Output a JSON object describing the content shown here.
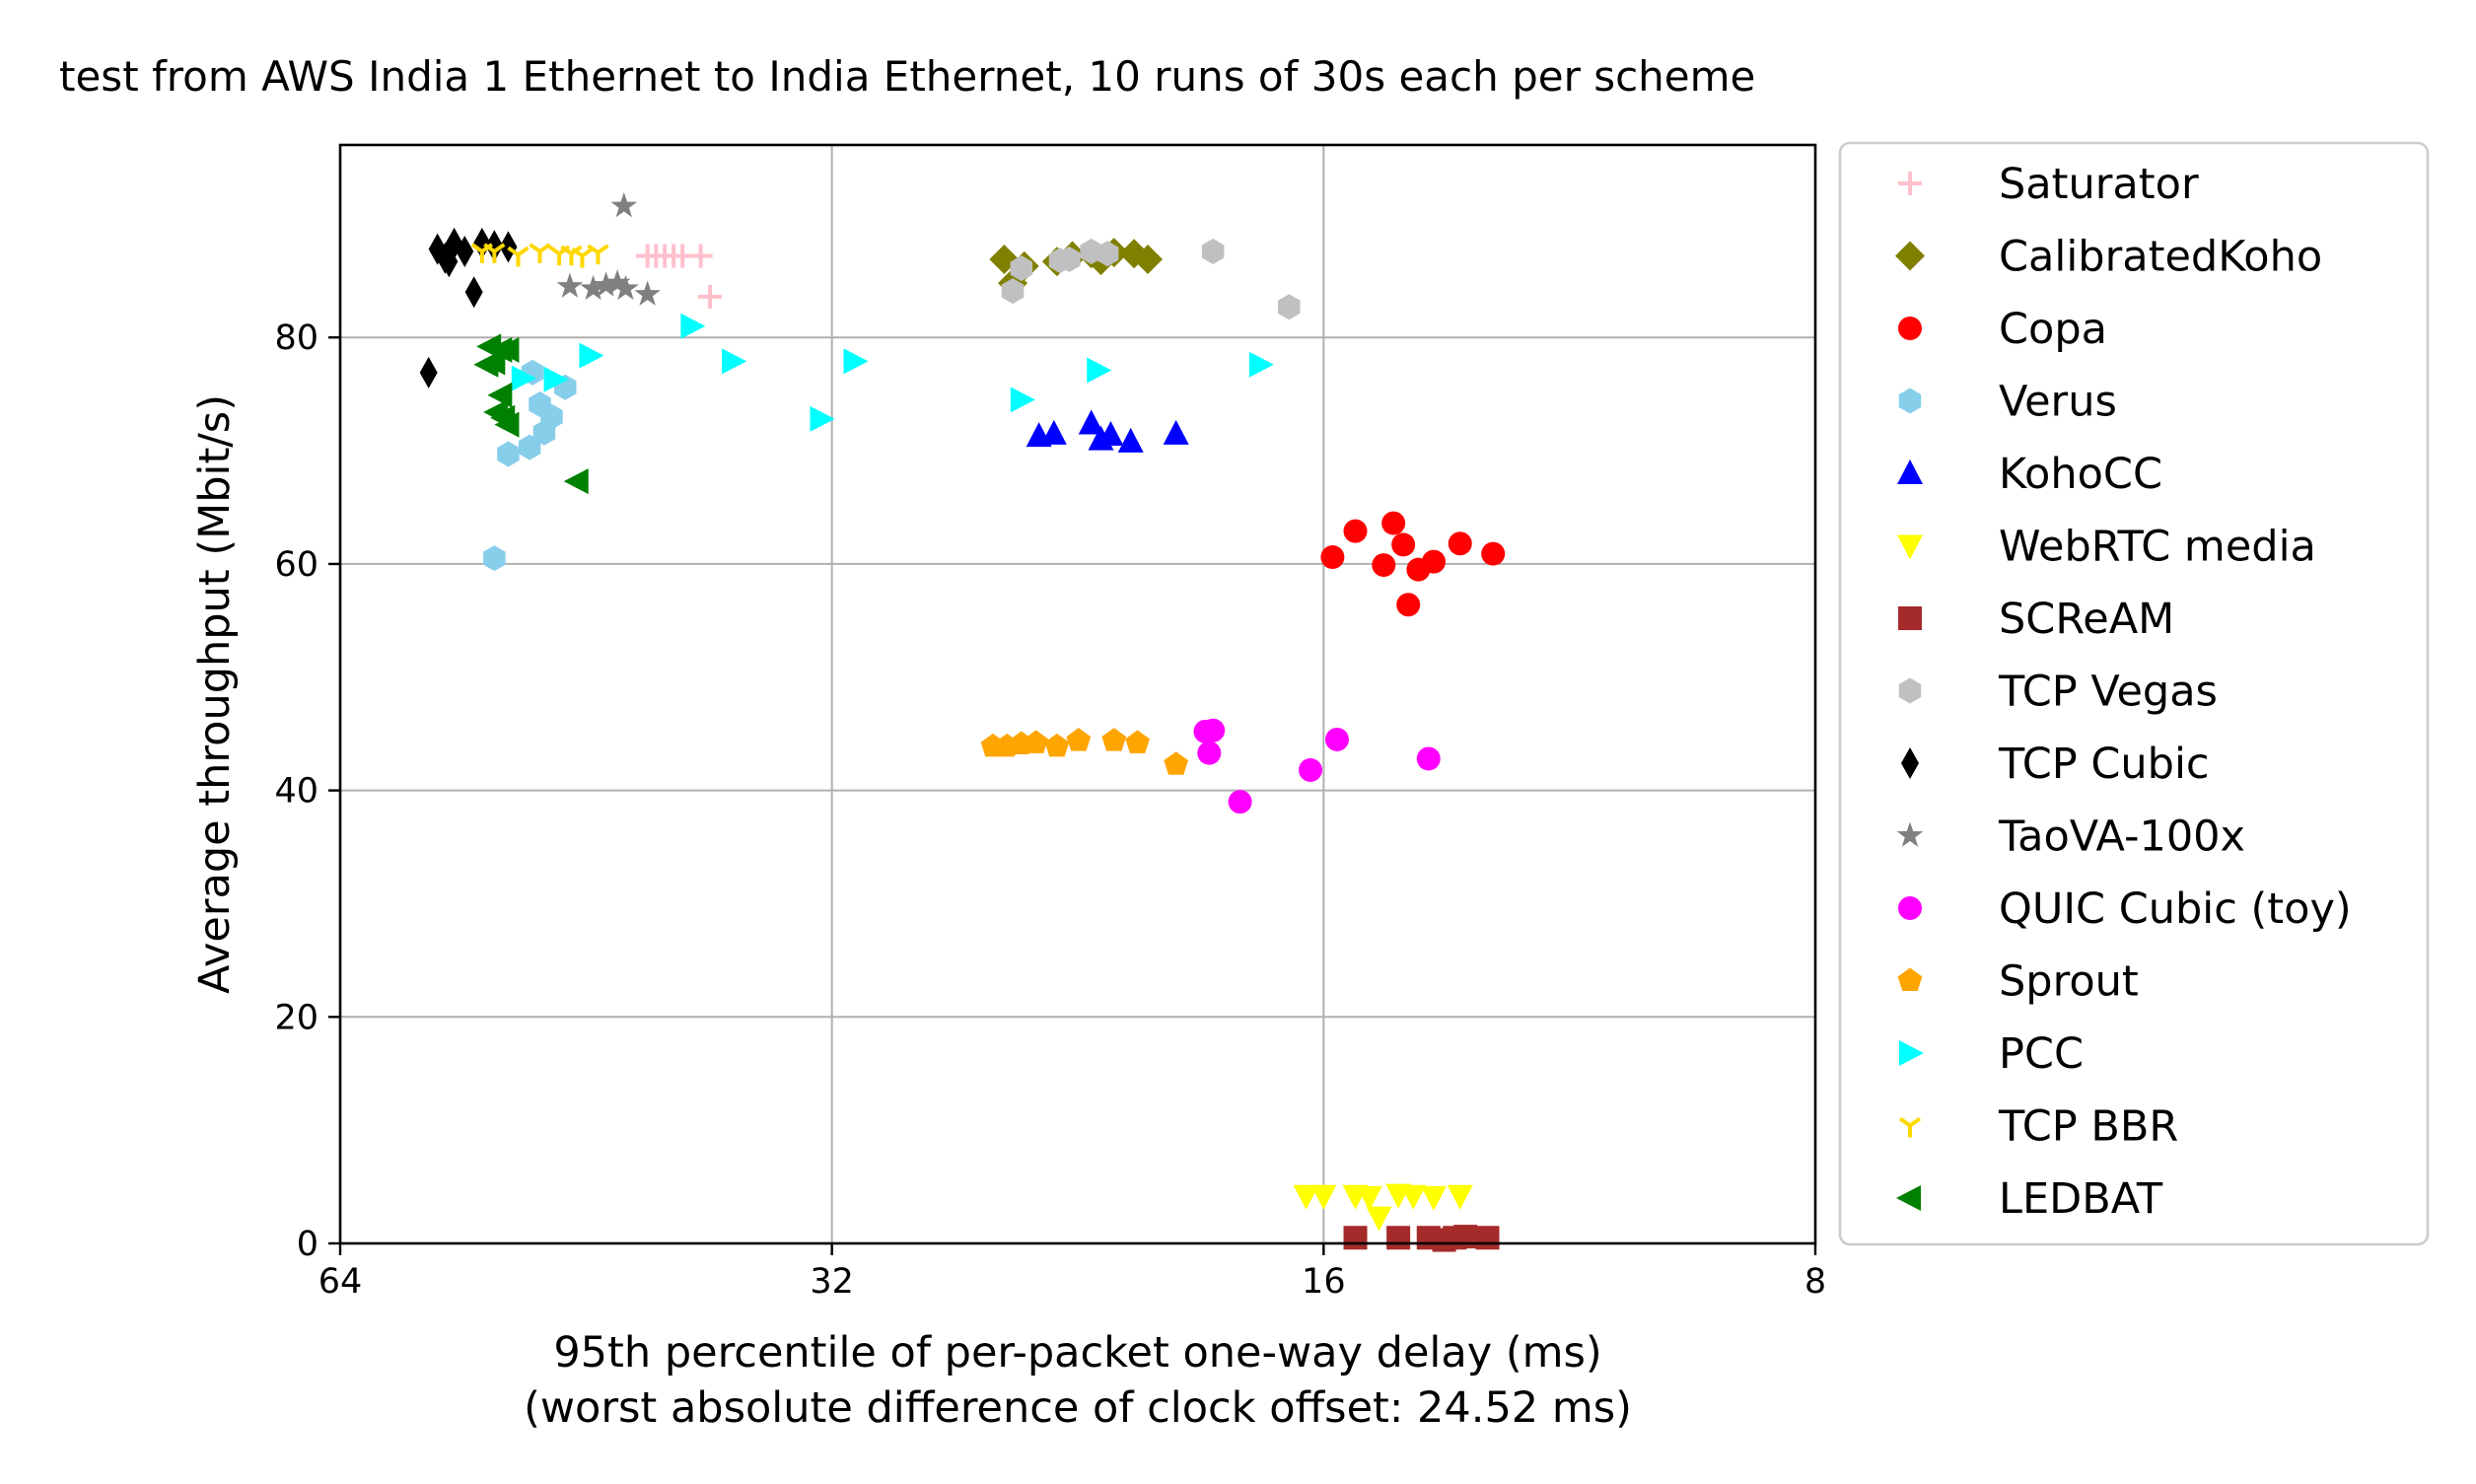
{
  "chart_data": {
    "type": "scatter",
    "title": "test from AWS India 1 Ethernet to India Ethernet, 10 runs of 30s each per scheme",
    "xlabel": "95th percentile of per-packet one-way delay (ms)",
    "xlabel2": "(worst absolute difference of clock offset: 24.52 ms)",
    "ylabel": "Average throughput (Mbit/s)",
    "x_scale": "log2",
    "x_inverted": true,
    "xlim": [
      64,
      8
    ],
    "ylim": [
      0,
      97
    ],
    "grid": true,
    "legend_position": "right, outside plot",
    "xticks": [
      {
        "value": 64,
        "label": "64"
      },
      {
        "value": 32,
        "label": "32"
      },
      {
        "value": 16,
        "label": "16"
      },
      {
        "value": 8,
        "label": "8"
      }
    ],
    "yticks": [
      {
        "value": 0,
        "label": "0"
      },
      {
        "value": 20,
        "label": "20"
      },
      {
        "value": 40,
        "label": "40"
      },
      {
        "value": 60,
        "label": "60"
      },
      {
        "value": 80,
        "label": "80"
      }
    ],
    "series": [
      {
        "name": "Saturator",
        "marker": "plus",
        "color": "#FFC0CB",
        "points": [
          [
            41.5,
            87.2
          ],
          [
            41.0,
            87.2
          ],
          [
            40.5,
            87.2
          ],
          [
            40.0,
            87.2
          ],
          [
            39.5,
            87.2
          ],
          [
            38.5,
            87.2
          ],
          [
            38.0,
            83.6
          ]
        ]
      },
      {
        "name": "CalibratedKoho",
        "marker": "diamond",
        "color": "#808000",
        "points": [
          [
            25.1,
            86.9
          ],
          [
            24.8,
            84.8
          ],
          [
            24.4,
            86.3
          ],
          [
            23.3,
            86.7
          ],
          [
            22.8,
            87.2
          ],
          [
            22.2,
            87.4
          ],
          [
            21.9,
            86.8
          ],
          [
            21.5,
            87.5
          ],
          [
            20.9,
            87.4
          ],
          [
            20.5,
            86.9
          ]
        ]
      },
      {
        "name": "Copa",
        "marker": "circle",
        "color": "#FF0000",
        "points": [
          [
            15.8,
            60.6
          ],
          [
            15.3,
            62.9
          ],
          [
            14.7,
            59.9
          ],
          [
            14.5,
            63.6
          ],
          [
            14.3,
            61.7
          ],
          [
            14.0,
            59.5
          ],
          [
            13.7,
            60.2
          ],
          [
            13.2,
            61.8
          ],
          [
            12.6,
            60.9
          ],
          [
            14.2,
            56.4
          ]
        ]
      },
      {
        "name": "Verus",
        "marker": "hexagon",
        "color": "#87CEEB",
        "points": [
          [
            50.5,
            69.7
          ],
          [
            49.0,
            70.3
          ],
          [
            48.0,
            71.6
          ],
          [
            47.5,
            73.0
          ],
          [
            48.3,
            74.1
          ],
          [
            46.6,
            75.6
          ],
          [
            48.8,
            76.9
          ],
          [
            51.5,
            60.5
          ]
        ]
      },
      {
        "name": "KohoCC",
        "marker": "triangle-up",
        "color": "#0000FF",
        "points": [
          [
            23.9,
            71.3
          ],
          [
            23.4,
            71.5
          ],
          [
            22.2,
            72.4
          ],
          [
            21.9,
            71.0
          ],
          [
            21.6,
            71.4
          ],
          [
            21.0,
            70.8
          ],
          [
            19.7,
            71.5
          ]
        ]
      },
      {
        "name": "WebRTC media",
        "marker": "triangle-down",
        "color": "#FFFF00",
        "points": [
          [
            16.4,
            4.2
          ],
          [
            16.0,
            4.2
          ],
          [
            15.3,
            4.2
          ],
          [
            15.0,
            4.1
          ],
          [
            14.8,
            2.3
          ],
          [
            14.4,
            4.3
          ],
          [
            14.1,
            4.2
          ],
          [
            13.7,
            4.1
          ],
          [
            13.2,
            4.2
          ]
        ]
      },
      {
        "name": "SCReAM",
        "marker": "square",
        "color": "#A52A2A",
        "points": [
          [
            15.3,
            0.5
          ],
          [
            14.4,
            0.5
          ],
          [
            13.8,
            0.5
          ],
          [
            13.5,
            0.3
          ],
          [
            13.3,
            0.5
          ],
          [
            13.1,
            0.6
          ],
          [
            12.7,
            0.5
          ]
        ]
      },
      {
        "name": "TCP Vegas",
        "marker": "hexagon",
        "color": "#C0C0C0",
        "points": [
          [
            24.8,
            84.1
          ],
          [
            24.5,
            86.1
          ],
          [
            23.2,
            86.8
          ],
          [
            22.9,
            86.9
          ],
          [
            22.2,
            87.6
          ],
          [
            21.7,
            87.4
          ],
          [
            18.7,
            87.6
          ],
          [
            16.8,
            82.7
          ]
        ]
      },
      {
        "name": "TCP Cubic",
        "marker": "thin-diamond",
        "color": "#000000",
        "points": [
          [
            55.8,
            87.8
          ],
          [
            55.2,
            87.0
          ],
          [
            54.5,
            88.3
          ],
          [
            53.7,
            87.6
          ],
          [
            53.0,
            84.0
          ],
          [
            52.4,
            88.3
          ],
          [
            51.5,
            88.1
          ],
          [
            50.5,
            88.0
          ],
          [
            56.5,
            76.9
          ],
          [
            54.9,
            86.7
          ]
        ]
      },
      {
        "name": "TaoVA-100x",
        "marker": "star",
        "color": "#808080",
        "points": [
          [
            46.3,
            84.5
          ],
          [
            44.8,
            84.3
          ],
          [
            44.0,
            84.6
          ],
          [
            43.3,
            84.8
          ],
          [
            42.8,
            84.3
          ],
          [
            41.5,
            83.8
          ],
          [
            42.9,
            91.6
          ]
        ]
      },
      {
        "name": "QUIC Cubic (toy)",
        "marker": "circle",
        "color": "#FF00FF",
        "points": [
          [
            18.9,
            45.2
          ],
          [
            18.7,
            45.3
          ],
          [
            18.8,
            43.3
          ],
          [
            18.0,
            39.0
          ],
          [
            16.3,
            41.8
          ],
          [
            15.7,
            44.5
          ],
          [
            13.8,
            42.8
          ]
        ]
      },
      {
        "name": "Sprout",
        "marker": "pentagon",
        "color": "#FFA500",
        "points": [
          [
            25.5,
            43.9
          ],
          [
            25.0,
            43.9
          ],
          [
            24.5,
            44.1
          ],
          [
            24.0,
            44.2
          ],
          [
            23.3,
            43.9
          ],
          [
            22.6,
            44.4
          ],
          [
            21.5,
            44.4
          ],
          [
            20.8,
            44.2
          ],
          [
            19.7,
            42.3
          ]
        ]
      },
      {
        "name": "PCC",
        "marker": "triangle-right",
        "color": "#00FFFF",
        "points": [
          [
            49.5,
            76.4
          ],
          [
            47.3,
            76.3
          ],
          [
            45.0,
            78.4
          ],
          [
            39.0,
            81.0
          ],
          [
            36.8,
            77.9
          ],
          [
            32.5,
            72.8
          ],
          [
            31.0,
            77.9
          ],
          [
            24.5,
            74.5
          ],
          [
            22.0,
            77.1
          ],
          [
            17.5,
            77.6
          ]
        ]
      },
      {
        "name": "TCP BBR",
        "marker": "tri-down",
        "color": "#FFD700",
        "points": [
          [
            52.4,
            87.6
          ],
          [
            51.5,
            87.6
          ],
          [
            49.8,
            87.3
          ],
          [
            48.3,
            87.6
          ],
          [
            47.0,
            87.4
          ],
          [
            46.2,
            87.4
          ],
          [
            45.5,
            87.2
          ],
          [
            44.5,
            87.5
          ]
        ]
      },
      {
        "name": "LEDBAT",
        "marker": "triangle-left",
        "color": "#008000",
        "points": [
          [
            51.8,
            79.2
          ],
          [
            51.0,
            78.9
          ],
          [
            50.5,
            78.9
          ],
          [
            52.0,
            77.6
          ],
          [
            51.5,
            77.8
          ],
          [
            51.0,
            74.9
          ],
          [
            51.3,
            73.4
          ],
          [
            50.8,
            72.9
          ],
          [
            50.5,
            72.3
          ],
          [
            45.8,
            67.3
          ]
        ]
      }
    ]
  }
}
